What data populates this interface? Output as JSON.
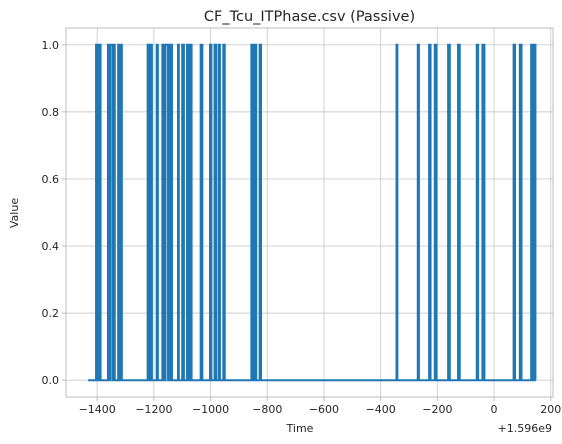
{
  "chart_data": {
    "type": "line",
    "title": "CF_Tcu_ITPhase.csv (Passive)",
    "xlabel": "Time",
    "ylabel": "Value",
    "x_offset_label": "+1.596e9",
    "xlim": [
      -1510,
      208
    ],
    "ylim": [
      -0.05,
      1.05
    ],
    "x_ticks": [
      -1400,
      -1200,
      -1000,
      -800,
      -600,
      -400,
      -200,
      0,
      200
    ],
    "x_tick_labels": [
      "−1400",
      "−1200",
      "−1000",
      "−800",
      "−600",
      "−400",
      "−200",
      "0",
      "200"
    ],
    "y_ticks": [
      0.0,
      0.2,
      0.4,
      0.6,
      0.8,
      1.0
    ],
    "y_tick_labels": [
      "0.0",
      "0.2",
      "0.4",
      "0.6",
      "0.8",
      "1.0"
    ],
    "grid": true,
    "series": [
      {
        "name": "CF_Tcu_ITPhase",
        "color": "#1f77b4",
        "x_start": -1432,
        "x_end": 147,
        "baseline": 0,
        "pulses": [
          [
            -1404,
            -1398
          ],
          [
            -1391,
            -1388
          ],
          [
            -1362,
            -1357
          ],
          [
            -1353,
            -1345
          ],
          [
            -1342,
            -1338
          ],
          [
            -1326,
            -1319
          ],
          [
            -1316,
            -1313
          ],
          [
            -1222,
            -1216
          ],
          [
            -1213,
            -1207
          ],
          [
            -1190,
            -1186
          ],
          [
            -1170,
            -1163
          ],
          [
            -1159,
            -1150
          ],
          [
            -1143,
            -1136
          ],
          [
            -1115,
            -1112
          ],
          [
            -1100,
            -1094
          ],
          [
            -1083,
            -1076
          ],
          [
            -1071,
            -1067
          ],
          [
            -1035,
            -1029
          ],
          [
            -1002,
            -997
          ],
          [
            -986,
            -980
          ],
          [
            -971,
            -967
          ],
          [
            -955,
            -950
          ],
          [
            -856,
            -850
          ],
          [
            -844,
            -839
          ],
          [
            -827,
            -822
          ],
          [
            -344,
            -341
          ],
          [
            -269,
            -265
          ],
          [
            -229,
            -224
          ],
          [
            -209,
            -203
          ],
          [
            -162,
            -156
          ],
          [
            -127,
            -121
          ],
          [
            -61,
            -56
          ],
          [
            -41,
            -34
          ],
          [
            69,
            74
          ],
          [
            91,
            97
          ],
          [
            131,
            136
          ],
          [
            140,
            146
          ]
        ]
      }
    ]
  }
}
